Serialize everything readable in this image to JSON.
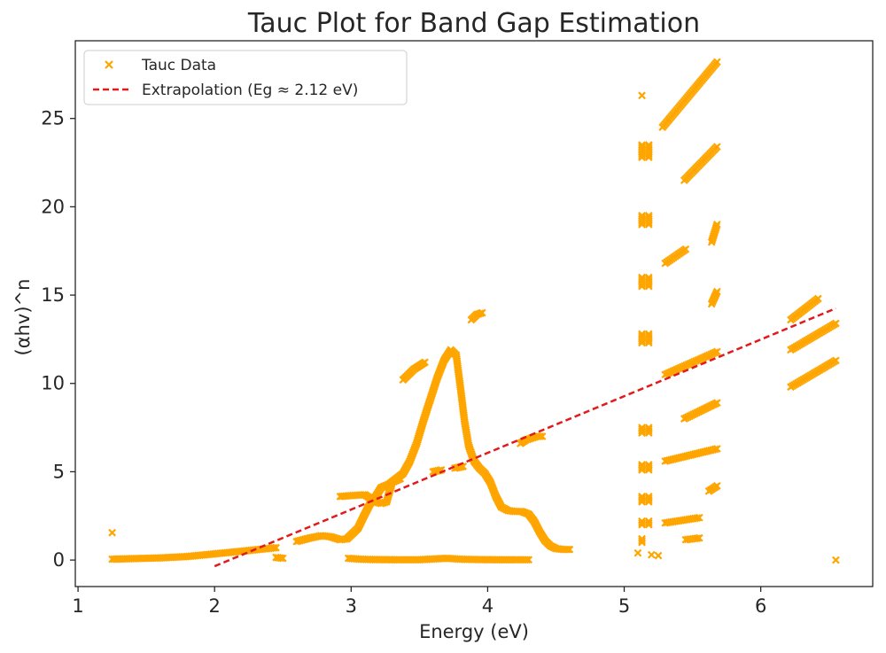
{
  "chart_data": {
    "type": "scatter",
    "title": "Tauc Plot for Band Gap Estimation",
    "xlabel": "Energy (eV)",
    "ylabel": "(αhv)^n",
    "xlim": [
      0.98,
      6.82
    ],
    "ylim": [
      -1.5,
      29.4
    ],
    "x_ticks": [
      1,
      2,
      3,
      4,
      5,
      6
    ],
    "y_ticks": [
      0,
      5,
      10,
      15,
      20,
      25
    ],
    "grid": false,
    "legend_position": "top-left",
    "series": [
      {
        "name": "Tauc Data",
        "marker": "x",
        "color": "#FFA500",
        "segments": [
          [
            [
              1.25,
              0.05
            ],
            [
              1.4,
              0.08
            ],
            [
              1.6,
              0.12
            ],
            [
              1.8,
              0.2
            ],
            [
              2.0,
              0.35
            ],
            [
              2.2,
              0.5
            ],
            [
              2.35,
              0.62
            ],
            [
              2.45,
              0.7
            ]
          ],
          [
            [
              2.6,
              1.05
            ],
            [
              2.7,
              1.25
            ],
            [
              2.78,
              1.38
            ],
            [
              2.85,
              1.32
            ],
            [
              2.92,
              1.15
            ],
            [
              2.97,
              1.2
            ],
            [
              3.05,
              1.8
            ],
            [
              3.1,
              2.6
            ],
            [
              3.14,
              3.2
            ],
            [
              3.18,
              3.6
            ],
            [
              3.22,
              4.1
            ],
            [
              3.28,
              4.3
            ],
            [
              3.33,
              4.6
            ],
            [
              3.38,
              4.9
            ],
            [
              3.43,
              5.6
            ],
            [
              3.48,
              6.6
            ],
            [
              3.53,
              7.9
            ],
            [
              3.58,
              9.1
            ],
            [
              3.63,
              10.3
            ],
            [
              3.68,
              11.3
            ],
            [
              3.73,
              11.9
            ],
            [
              3.77,
              11.6
            ],
            [
              3.8,
              9.8
            ],
            [
              3.83,
              7.9
            ],
            [
              3.86,
              6.5
            ],
            [
              3.9,
              5.6
            ],
            [
              3.94,
              5.2
            ],
            [
              3.98,
              4.9
            ],
            [
              4.02,
              4.4
            ],
            [
              4.06,
              3.6
            ],
            [
              4.1,
              3.0
            ],
            [
              4.15,
              2.8
            ],
            [
              4.2,
              2.75
            ],
            [
              4.25,
              2.75
            ],
            [
              4.3,
              2.6
            ],
            [
              4.34,
              2.2
            ],
            [
              4.38,
              1.6
            ],
            [
              4.42,
              1.1
            ],
            [
              4.46,
              0.8
            ],
            [
              4.5,
              0.65
            ],
            [
              4.55,
              0.6
            ],
            [
              4.6,
              0.6
            ]
          ],
          [
            [
              2.98,
              0.1
            ],
            [
              3.06,
              0.05
            ],
            [
              3.15,
              0.03
            ],
            [
              3.3,
              0.02
            ],
            [
              3.5,
              0.02
            ],
            [
              3.7,
              0.1
            ],
            [
              3.8,
              0.05
            ],
            [
              3.9,
              0.03
            ],
            [
              4.05,
              0.02
            ],
            [
              4.2,
              0.02
            ],
            [
              4.3,
              0.02
            ]
          ],
          [
            [
              2.92,
              3.6
            ],
            [
              3.0,
              3.65
            ],
            [
              3.1,
              3.7
            ],
            [
              3.18,
              3.3
            ],
            [
              3.22,
              3.2
            ],
            [
              3.26,
              3.3
            ],
            [
              3.3,
              4.4
            ],
            [
              3.36,
              4.6
            ]
          ],
          [
            [
              3.38,
              10.2
            ],
            [
              3.42,
              10.5
            ],
            [
              3.46,
              10.8
            ],
            [
              3.5,
              11.0
            ],
            [
              3.54,
              11.2
            ]
          ],
          [
            [
              3.6,
              5.0
            ],
            [
              3.66,
              5.1
            ]
          ],
          [
            [
              3.76,
              5.2
            ],
            [
              3.82,
              5.3
            ]
          ],
          [
            [
              3.88,
              13.6
            ],
            [
              3.92,
              13.9
            ],
            [
              3.96,
              14.0
            ]
          ],
          [
            [
              4.24,
              6.6
            ],
            [
              4.28,
              6.8
            ],
            [
              4.32,
              6.9
            ],
            [
              4.36,
              7.0
            ],
            [
              4.4,
              7.0
            ]
          ],
          [
            [
              2.45,
              0.15
            ],
            [
              2.5,
              0.1
            ]
          ]
        ],
        "points": [
          [
            1.25,
            1.55
          ],
          [
            6.55,
            0.0
          ],
          [
            5.1,
            0.4
          ],
          [
            5.2,
            0.3
          ],
          [
            5.25,
            0.25
          ]
        ],
        "columns": [
          {
            "x": 5.13,
            "y_min": 1.0,
            "y_max": 26.3,
            "dense": [
              [
                22.8,
                23.5
              ],
              [
                19.0,
                19.5
              ],
              [
                15.5,
                16.0
              ],
              [
                12.3,
                12.8
              ],
              [
                7.2,
                7.5
              ],
              [
                5.1,
                5.4
              ],
              [
                3.3,
                3.6
              ],
              [
                2.0,
                2.2
              ],
              [
                1.0,
                1.2
              ]
            ]
          },
          {
            "x": 5.18,
            "y_min": 1.0,
            "y_max": 23.5,
            "dense": [
              [
                22.8,
                23.5
              ],
              [
                19.0,
                19.5
              ],
              [
                15.5,
                16.0
              ],
              [
                12.3,
                12.8
              ],
              [
                7.2,
                7.5
              ],
              [
                5.1,
                5.4
              ],
              [
                3.3,
                3.6
              ],
              [
                2.0,
                2.2
              ]
            ]
          }
        ],
        "upper_bands": [
          {
            "x_start": 5.28,
            "x_end": 5.68,
            "y_start": 24.5,
            "y_end": 28.2
          },
          {
            "x_start": 5.44,
            "x_end": 5.68,
            "y_start": 21.5,
            "y_end": 23.4
          },
          {
            "x_start": 5.3,
            "x_end": 5.45,
            "y_start": 16.8,
            "y_end": 17.6
          },
          {
            "x_start": 5.3,
            "x_end": 5.68,
            "y_start": 10.5,
            "y_end": 11.8
          },
          {
            "x_start": 5.44,
            "x_end": 5.68,
            "y_start": 8.0,
            "y_end": 8.9
          },
          {
            "x_start": 5.3,
            "x_end": 5.68,
            "y_start": 5.6,
            "y_end": 6.3
          },
          {
            "x_start": 5.3,
            "x_end": 5.55,
            "y_start": 2.1,
            "y_end": 2.4
          },
          {
            "x_start": 5.45,
            "x_end": 5.55,
            "y_start": 1.15,
            "y_end": 1.25
          },
          {
            "x_start": 5.64,
            "x_end": 5.68,
            "y_start": 18.0,
            "y_end": 19.0
          },
          {
            "x_start": 5.64,
            "x_end": 5.68,
            "y_start": 14.5,
            "y_end": 15.2
          },
          {
            "x_start": 5.62,
            "x_end": 5.68,
            "y_start": 3.9,
            "y_end": 4.2
          },
          {
            "x_start": 6.22,
            "x_end": 6.42,
            "y_start": 13.6,
            "y_end": 14.8
          },
          {
            "x_start": 6.22,
            "x_end": 6.55,
            "y_start": 9.8,
            "y_end": 11.3
          },
          {
            "x_start": 6.22,
            "x_end": 6.55,
            "y_start": 11.9,
            "y_end": 13.4
          }
        ]
      },
      {
        "name": "Extrapolation (Eg ≈ 2.12 eV)",
        "type": "line",
        "style": "dashed",
        "color": "#e31a1c",
        "x": [
          2.0,
          6.55
        ],
        "y": [
          -0.35,
          14.25
        ]
      }
    ]
  }
}
